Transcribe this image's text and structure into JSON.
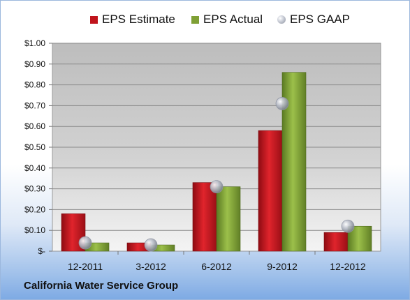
{
  "chart_data": {
    "type": "bar",
    "title": "",
    "xlabel": "",
    "ylabel": "",
    "categories": [
      "12-2011",
      "3-2012",
      "6-2012",
      "9-2012",
      "12-2012"
    ],
    "series": [
      {
        "name": "EPS Estimate",
        "type": "bar",
        "color": "#c0141c",
        "values": [
          0.18,
          0.04,
          0.33,
          0.58,
          0.09
        ]
      },
      {
        "name": "EPS Actual",
        "type": "bar",
        "color": "#7fa035",
        "values": [
          0.04,
          0.03,
          0.31,
          0.86,
          0.12
        ]
      },
      {
        "name": "EPS GAAP",
        "type": "marker",
        "color": "#b8bcc6",
        "values": [
          0.04,
          0.03,
          0.31,
          0.71,
          0.12
        ]
      }
    ],
    "ylim": [
      0,
      1.0
    ],
    "yticks": [
      "$-",
      "$0.10",
      "$0.20",
      "$0.30",
      "$0.40",
      "$0.50",
      "$0.60",
      "$0.70",
      "$0.80",
      "$0.90",
      "$1.00"
    ],
    "grid": true,
    "legend_position": "top"
  },
  "footer": {
    "company": "California Water Service Group"
  }
}
